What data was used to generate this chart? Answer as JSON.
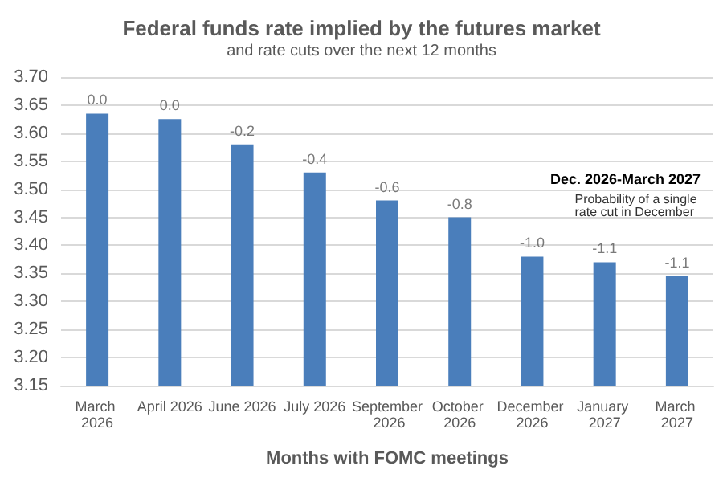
{
  "chart_data": {
    "type": "bar",
    "title": "Federal funds rate implied by the futures market",
    "subtitle": "and rate cuts over the next 12 months",
    "xlabel": "Months with FOMC meetings",
    "categories": [
      "March 2026",
      "April 2026",
      "June 2026",
      "July 2026",
      "September 2026",
      "October 2026",
      "December 2026",
      "January 2027",
      "March 2027"
    ],
    "values": [
      3.635,
      3.625,
      3.58,
      3.53,
      3.48,
      3.45,
      3.38,
      3.37,
      3.345
    ],
    "color": "#4a7ebb",
    "ylim": [
      3.15,
      3.7
    ],
    "yticks": [
      {
        "value": 3.15,
        "label": "3.15"
      },
      {
        "value": 3.2,
        "label": "3.20"
      },
      {
        "value": 3.25,
        "label": "3.25"
      },
      {
        "value": 3.3,
        "label": "3.30"
      },
      {
        "value": 3.35,
        "label": "3.35"
      },
      {
        "value": 3.4,
        "label": "3.40"
      },
      {
        "value": 3.45,
        "label": "3.45"
      },
      {
        "value": 3.5,
        "label": "3.50"
      },
      {
        "value": 3.55,
        "label": "3.55"
      },
      {
        "value": 3.6,
        "label": "3.60"
      },
      {
        "value": 3.65,
        "label": "3.65"
      },
      {
        "value": 3.7,
        "label": "3.70"
      }
    ],
    "grid": "y",
    "annotations": [
      {
        "text": "0.0",
        "x": "March 2026",
        "y": 3.635
      },
      {
        "text": "0.0",
        "x": "April 2026",
        "y": 3.625
      },
      {
        "text": "-0.2",
        "x": "June 2026",
        "y": 3.58
      },
      {
        "text": "-0.4",
        "x": "July 2026",
        "y": 3.53
      },
      {
        "text": "-0.6",
        "x": "September 2026",
        "y": 3.48
      },
      {
        "text": "-0.8",
        "x": "October 2026",
        "y": 3.45
      },
      {
        "text": "-1.0",
        "x": "December 2026",
        "y": 3.38
      },
      {
        "text": "-1.1",
        "x": "January 2027",
        "y": 3.37
      },
      {
        "text": "-1.1",
        "x": "March 2027",
        "y": 3.345
      },
      "Dec. 2026-March 2027",
      "Probability of a single rate cut in December"
    ]
  }
}
